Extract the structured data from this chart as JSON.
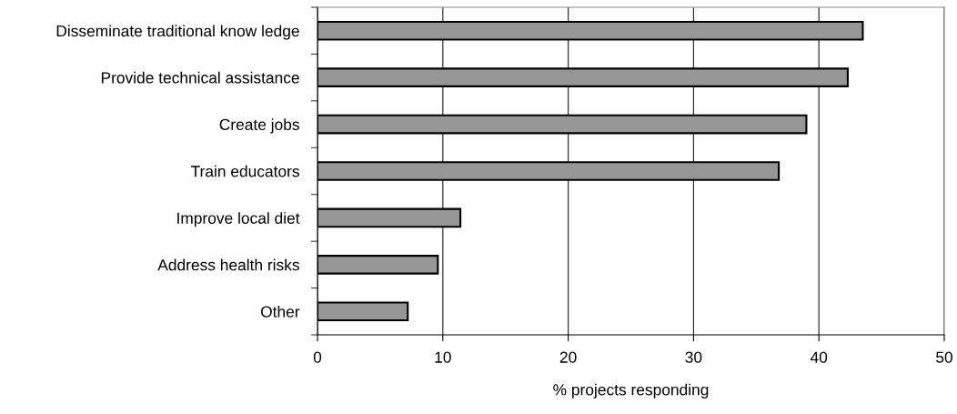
{
  "chart_data": {
    "type": "bar",
    "orientation": "horizontal",
    "xlabel": "% projects responding",
    "categories": [
      "Disseminate traditional know ledge",
      "Provide technical assistance",
      "Create jobs",
      "Train educators",
      "Improve local diet",
      "Address health risks",
      "Other"
    ],
    "values": [
      43.5,
      42.3,
      39.0,
      36.8,
      11.4,
      9.6,
      7.2
    ],
    "color": "#969696",
    "xlim": [
      0,
      50
    ],
    "xticks": [
      0,
      10,
      20,
      30,
      40,
      50
    ],
    "grid": "x"
  }
}
